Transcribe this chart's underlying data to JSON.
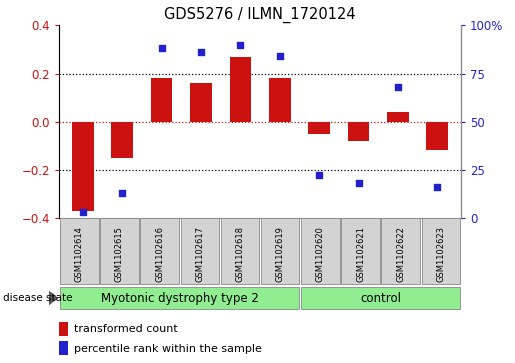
{
  "title": "GDS5276 / ILMN_1720124",
  "samples": [
    "GSM1102614",
    "GSM1102615",
    "GSM1102616",
    "GSM1102617",
    "GSM1102618",
    "GSM1102619",
    "GSM1102620",
    "GSM1102621",
    "GSM1102622",
    "GSM1102623"
  ],
  "bar_values": [
    -0.37,
    -0.15,
    0.18,
    0.16,
    0.27,
    0.18,
    -0.05,
    -0.08,
    0.04,
    -0.12
  ],
  "dot_values": [
    3,
    13,
    88,
    86,
    90,
    84,
    22,
    18,
    68,
    16
  ],
  "bar_color": "#cc1111",
  "dot_color": "#2222cc",
  "ylim_left": [
    -0.4,
    0.4
  ],
  "ylim_right": [
    0,
    100
  ],
  "yticks_left": [
    -0.4,
    -0.2,
    0.0,
    0.2,
    0.4
  ],
  "yticks_right": [
    0,
    25,
    50,
    75,
    100
  ],
  "ytick_labels_right": [
    "0",
    "25",
    "50",
    "75",
    "100%"
  ],
  "groups": [
    {
      "label": "Myotonic dystrophy type 2",
      "start": 0,
      "end": 6,
      "color": "#90ee90"
    },
    {
      "label": "control",
      "start": 6,
      "end": 10,
      "color": "#90ee90"
    }
  ],
  "disease_state_label": "disease state",
  "legend_bar_label": "transformed count",
  "legend_dot_label": "percentile rank within the sample",
  "hline_zero_color": "#cc1111",
  "hline_dotted_color": "#000000",
  "bg_label_area": "#d3d3d3",
  "group_border_color": "#888888"
}
